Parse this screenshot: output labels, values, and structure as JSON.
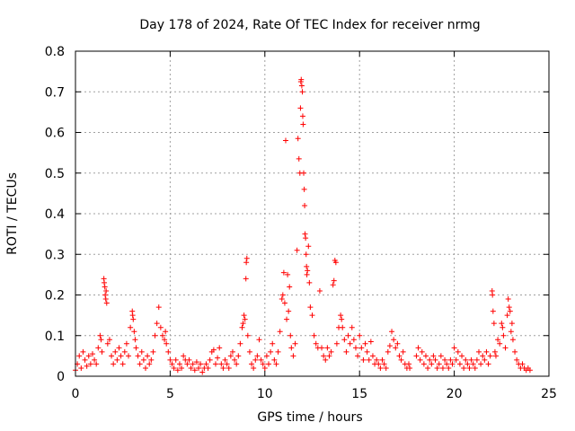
{
  "chart_data": {
    "type": "scatter",
    "title": "Day 178 of 2024, Rate Of TEC Index for receiver nrmg",
    "xlabel": "GPS time / hours",
    "ylabel": "ROTI / TECUs",
    "xlim": [
      0,
      25
    ],
    "ylim": [
      0,
      0.8
    ],
    "xticks": [
      0,
      5,
      10,
      15,
      20,
      25
    ],
    "xtick_labels": [
      "0",
      "5",
      "10",
      "15",
      "20",
      "25"
    ],
    "yticks": [
      0,
      0.1,
      0.2,
      0.3,
      0.4,
      0.5,
      0.6,
      0.7,
      0.8
    ],
    "ytick_labels": [
      "0",
      "0.1",
      "0.2",
      "0.3",
      "0.4",
      "0.5",
      "0.6",
      "0.7",
      "0.8"
    ],
    "grid": true,
    "marker": "plus",
    "marker_color": "#ff0000",
    "series": [
      {
        "name": "ROTI",
        "points": [
          [
            0.0,
            0.015
          ],
          [
            0.1,
            0.03
          ],
          [
            0.2,
            0.05
          ],
          [
            0.3,
            0.02
          ],
          [
            0.4,
            0.06
          ],
          [
            0.5,
            0.04
          ],
          [
            0.6,
            0.025
          ],
          [
            0.7,
            0.05
          ],
          [
            0.8,
            0.03
          ],
          [
            0.9,
            0.055
          ],
          [
            1.0,
            0.04
          ],
          [
            1.1,
            0.03
          ],
          [
            1.2,
            0.07
          ],
          [
            1.3,
            0.1
          ],
          [
            1.35,
            0.09
          ],
          [
            1.4,
            0.06
          ],
          [
            1.5,
            0.24
          ],
          [
            1.52,
            0.23
          ],
          [
            1.55,
            0.22
          ],
          [
            1.57,
            0.2
          ],
          [
            1.6,
            0.19
          ],
          [
            1.62,
            0.21
          ],
          [
            1.65,
            0.18
          ],
          [
            1.7,
            0.08
          ],
          [
            1.8,
            0.09
          ],
          [
            1.9,
            0.05
          ],
          [
            2.0,
            0.03
          ],
          [
            2.1,
            0.06
          ],
          [
            2.2,
            0.04
          ],
          [
            2.3,
            0.07
          ],
          [
            2.4,
            0.05
          ],
          [
            2.5,
            0.03
          ],
          [
            2.6,
            0.06
          ],
          [
            2.7,
            0.08
          ],
          [
            2.8,
            0.05
          ],
          [
            2.9,
            0.12
          ],
          [
            3.0,
            0.16
          ],
          [
            3.02,
            0.15
          ],
          [
            3.05,
            0.14
          ],
          [
            3.1,
            0.11
          ],
          [
            3.15,
            0.09
          ],
          [
            3.2,
            0.07
          ],
          [
            3.3,
            0.05
          ],
          [
            3.4,
            0.03
          ],
          [
            3.5,
            0.06
          ],
          [
            3.6,
            0.04
          ],
          [
            3.7,
            0.02
          ],
          [
            3.8,
            0.05
          ],
          [
            3.9,
            0.03
          ],
          [
            4.0,
            0.04
          ],
          [
            4.1,
            0.06
          ],
          [
            4.2,
            0.1
          ],
          [
            4.3,
            0.13
          ],
          [
            4.4,
            0.17
          ],
          [
            4.5,
            0.12
          ],
          [
            4.6,
            0.1
          ],
          [
            4.7,
            0.09
          ],
          [
            4.75,
            0.11
          ],
          [
            4.8,
            0.08
          ],
          [
            4.9,
            0.06
          ],
          [
            5.0,
            0.04
          ],
          [
            5.1,
            0.03
          ],
          [
            5.2,
            0.02
          ],
          [
            5.3,
            0.04
          ],
          [
            5.4,
            0.015
          ],
          [
            5.5,
            0.03
          ],
          [
            5.6,
            0.02
          ],
          [
            5.7,
            0.05
          ],
          [
            5.8,
            0.04
          ],
          [
            5.9,
            0.03
          ],
          [
            6.0,
            0.04
          ],
          [
            6.1,
            0.02
          ],
          [
            6.2,
            0.03
          ],
          [
            6.3,
            0.015
          ],
          [
            6.4,
            0.035
          ],
          [
            6.5,
            0.02
          ],
          [
            6.6,
            0.03
          ],
          [
            6.7,
            0.01
          ],
          [
            6.8,
            0.02
          ],
          [
            6.9,
            0.03
          ],
          [
            7.0,
            0.02
          ],
          [
            7.1,
            0.04
          ],
          [
            7.2,
            0.06
          ],
          [
            7.3,
            0.065
          ],
          [
            7.4,
            0.03
          ],
          [
            7.5,
            0.045
          ],
          [
            7.6,
            0.07
          ],
          [
            7.7,
            0.03
          ],
          [
            7.8,
            0.02
          ],
          [
            7.9,
            0.04
          ],
          [
            8.0,
            0.03
          ],
          [
            8.1,
            0.02
          ],
          [
            8.2,
            0.05
          ],
          [
            8.3,
            0.06
          ],
          [
            8.4,
            0.04
          ],
          [
            8.5,
            0.03
          ],
          [
            8.6,
            0.05
          ],
          [
            8.7,
            0.08
          ],
          [
            8.8,
            0.12
          ],
          [
            8.85,
            0.13
          ],
          [
            8.9,
            0.15
          ],
          [
            8.95,
            0.14
          ],
          [
            9.0,
            0.24
          ],
          [
            9.02,
            0.28
          ],
          [
            9.05,
            0.29
          ],
          [
            9.1,
            0.1
          ],
          [
            9.2,
            0.06
          ],
          [
            9.3,
            0.03
          ],
          [
            9.4,
            0.02
          ],
          [
            9.5,
            0.04
          ],
          [
            9.6,
            0.05
          ],
          [
            9.7,
            0.09
          ],
          [
            9.8,
            0.04
          ],
          [
            9.9,
            0.03
          ],
          [
            10.0,
            0.02
          ],
          [
            10.1,
            0.05
          ],
          [
            10.2,
            0.03
          ],
          [
            10.3,
            0.06
          ],
          [
            10.4,
            0.08
          ],
          [
            10.5,
            0.04
          ],
          [
            10.6,
            0.03
          ],
          [
            10.7,
            0.06
          ],
          [
            10.8,
            0.11
          ],
          [
            10.9,
            0.19
          ],
          [
            10.95,
            0.2
          ],
          [
            11.0,
            0.255
          ],
          [
            11.05,
            0.18
          ],
          [
            11.1,
            0.58
          ],
          [
            11.15,
            0.14
          ],
          [
            11.2,
            0.25
          ],
          [
            11.25,
            0.16
          ],
          [
            11.3,
            0.22
          ],
          [
            11.35,
            0.1
          ],
          [
            11.4,
            0.07
          ],
          [
            11.5,
            0.05
          ],
          [
            11.6,
            0.08
          ],
          [
            11.7,
            0.31
          ],
          [
            11.75,
            0.585
          ],
          [
            11.8,
            0.535
          ],
          [
            11.85,
            0.5
          ],
          [
            11.88,
            0.66
          ],
          [
            11.9,
            0.725
          ],
          [
            11.92,
            0.73
          ],
          [
            11.95,
            0.715
          ],
          [
            11.98,
            0.7
          ],
          [
            12.0,
            0.64
          ],
          [
            12.02,
            0.62
          ],
          [
            12.05,
            0.5
          ],
          [
            12.08,
            0.46
          ],
          [
            12.1,
            0.42
          ],
          [
            12.12,
            0.35
          ],
          [
            12.15,
            0.34
          ],
          [
            12.18,
            0.3
          ],
          [
            12.2,
            0.27
          ],
          [
            12.22,
            0.25
          ],
          [
            12.25,
            0.26
          ],
          [
            12.3,
            0.32
          ],
          [
            12.35,
            0.23
          ],
          [
            12.4,
            0.17
          ],
          [
            12.5,
            0.15
          ],
          [
            12.6,
            0.1
          ],
          [
            12.7,
            0.08
          ],
          [
            12.8,
            0.07
          ],
          [
            12.9,
            0.21
          ],
          [
            13.0,
            0.07
          ],
          [
            13.1,
            0.05
          ],
          [
            13.2,
            0.04
          ],
          [
            13.3,
            0.07
          ],
          [
            13.4,
            0.05
          ],
          [
            13.5,
            0.06
          ],
          [
            13.6,
            0.225
          ],
          [
            13.65,
            0.235
          ],
          [
            13.7,
            0.285
          ],
          [
            13.75,
            0.28
          ],
          [
            13.8,
            0.08
          ],
          [
            13.9,
            0.12
          ],
          [
            14.0,
            0.15
          ],
          [
            14.05,
            0.14
          ],
          [
            14.1,
            0.12
          ],
          [
            14.2,
            0.09
          ],
          [
            14.3,
            0.06
          ],
          [
            14.4,
            0.1
          ],
          [
            14.5,
            0.08
          ],
          [
            14.6,
            0.12
          ],
          [
            14.7,
            0.09
          ],
          [
            14.8,
            0.07
          ],
          [
            14.9,
            0.05
          ],
          [
            15.0,
            0.1
          ],
          [
            15.1,
            0.07
          ],
          [
            15.2,
            0.04
          ],
          [
            15.3,
            0.08
          ],
          [
            15.4,
            0.06
          ],
          [
            15.5,
            0.04
          ],
          [
            15.6,
            0.085
          ],
          [
            15.7,
            0.05
          ],
          [
            15.8,
            0.03
          ],
          [
            15.9,
            0.04
          ],
          [
            16.0,
            0.03
          ],
          [
            16.1,
            0.02
          ],
          [
            16.2,
            0.04
          ],
          [
            16.3,
            0.03
          ],
          [
            16.4,
            0.02
          ],
          [
            16.5,
            0.06
          ],
          [
            16.6,
            0.075
          ],
          [
            16.7,
            0.11
          ],
          [
            16.8,
            0.09
          ],
          [
            16.9,
            0.07
          ],
          [
            17.0,
            0.08
          ],
          [
            17.1,
            0.05
          ],
          [
            17.2,
            0.04
          ],
          [
            17.3,
            0.06
          ],
          [
            17.4,
            0.03
          ],
          [
            17.5,
            0.02
          ],
          [
            17.6,
            0.03
          ],
          [
            17.65,
            0.02
          ],
          [
            18.0,
            0.05
          ],
          [
            18.1,
            0.07
          ],
          [
            18.2,
            0.04
          ],
          [
            18.3,
            0.06
          ],
          [
            18.4,
            0.03
          ],
          [
            18.5,
            0.05
          ],
          [
            18.6,
            0.02
          ],
          [
            18.7,
            0.04
          ],
          [
            18.8,
            0.03
          ],
          [
            18.9,
            0.05
          ],
          [
            19.0,
            0.04
          ],
          [
            19.1,
            0.02
          ],
          [
            19.2,
            0.03
          ],
          [
            19.3,
            0.05
          ],
          [
            19.4,
            0.02
          ],
          [
            19.5,
            0.04
          ],
          [
            19.6,
            0.03
          ],
          [
            19.7,
            0.02
          ],
          [
            19.8,
            0.04
          ],
          [
            19.9,
            0.03
          ],
          [
            20.0,
            0.07
          ],
          [
            20.1,
            0.04
          ],
          [
            20.2,
            0.06
          ],
          [
            20.3,
            0.03
          ],
          [
            20.4,
            0.05
          ],
          [
            20.5,
            0.02
          ],
          [
            20.6,
            0.04
          ],
          [
            20.7,
            0.03
          ],
          [
            20.8,
            0.02
          ],
          [
            20.9,
            0.04
          ],
          [
            21.0,
            0.03
          ],
          [
            21.1,
            0.02
          ],
          [
            21.2,
            0.04
          ],
          [
            21.3,
            0.06
          ],
          [
            21.4,
            0.03
          ],
          [
            21.5,
            0.05
          ],
          [
            21.6,
            0.04
          ],
          [
            21.7,
            0.06
          ],
          [
            21.8,
            0.03
          ],
          [
            21.9,
            0.05
          ],
          [
            22.0,
            0.21
          ],
          [
            22.02,
            0.2
          ],
          [
            22.05,
            0.16
          ],
          [
            22.1,
            0.13
          ],
          [
            22.15,
            0.06
          ],
          [
            22.2,
            0.05
          ],
          [
            22.3,
            0.09
          ],
          [
            22.4,
            0.08
          ],
          [
            22.5,
            0.13
          ],
          [
            22.55,
            0.12
          ],
          [
            22.6,
            0.1
          ],
          [
            22.7,
            0.07
          ],
          [
            22.8,
            0.15
          ],
          [
            22.85,
            0.19
          ],
          [
            22.9,
            0.17
          ],
          [
            22.95,
            0.16
          ],
          [
            23.0,
            0.11
          ],
          [
            23.05,
            0.13
          ],
          [
            23.1,
            0.09
          ],
          [
            23.2,
            0.06
          ],
          [
            23.3,
            0.04
          ],
          [
            23.4,
            0.03
          ],
          [
            23.5,
            0.02
          ],
          [
            23.6,
            0.03
          ],
          [
            23.7,
            0.02
          ],
          [
            23.8,
            0.015
          ],
          [
            23.9,
            0.02
          ],
          [
            24.0,
            0.015
          ]
        ]
      }
    ]
  }
}
